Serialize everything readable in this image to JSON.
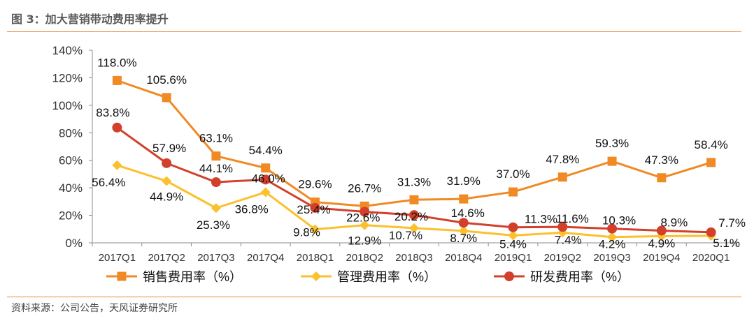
{
  "figure": {
    "title": "图 3：加大营销带动费用率提升",
    "source": "资料来源：公司公告，天风证券研究所"
  },
  "chart_data": {
    "type": "line",
    "title": "",
    "xlabel": "",
    "ylabel": "",
    "categories": [
      "2017Q1",
      "2017Q2",
      "2017Q3",
      "2017Q4",
      "2018Q1",
      "2018Q2",
      "2018Q3",
      "2018Q4",
      "2019Q1",
      "2019Q2",
      "2019Q3",
      "2019Q4",
      "2020Q1"
    ],
    "ylim": [
      0,
      140
    ],
    "yticks": [
      0,
      20,
      40,
      60,
      80,
      100,
      120,
      140
    ],
    "ytick_labels": [
      "0%",
      "20%",
      "40%",
      "60%",
      "80%",
      "100%",
      "120%",
      "140%"
    ],
    "grid": false,
    "legend_position": "bottom",
    "series": [
      {
        "name": "销售费用率（%）",
        "marker": "square",
        "color": "#f08a24",
        "values": [
          118.0,
          105.6,
          63.1,
          54.4,
          29.6,
          26.7,
          31.3,
          31.9,
          37.0,
          47.8,
          59.3,
          47.3,
          58.4
        ],
        "labels": [
          "118.0%",
          "105.6%",
          "63.1%",
          "54.4%",
          "29.6%",
          "26.7%",
          "31.3%",
          "31.9%",
          "37.0%",
          "47.8%",
          "59.3%",
          "47.3%",
          "58.4%"
        ]
      },
      {
        "name": "管理费用率（%）",
        "marker": "diamond",
        "color": "#fbc02d",
        "values": [
          56.4,
          44.9,
          25.3,
          36.8,
          9.8,
          12.9,
          10.7,
          8.7,
          5.4,
          7.4,
          4.2,
          4.9,
          5.1
        ],
        "labels": [
          "56.4%",
          "44.9%",
          "25.3%",
          "36.8%",
          "9.8%",
          "12.9%",
          "10.7%",
          "8.7%",
          "5.4%",
          "7.4%",
          "4.2%",
          "4.9%",
          "5.1%"
        ]
      },
      {
        "name": "研发费用率（%）",
        "marker": "circle",
        "color": "#d2402b",
        "values": [
          83.8,
          57.9,
          44.1,
          46.0,
          25.4,
          22.6,
          20.2,
          14.6,
          11.3,
          11.6,
          10.3,
          8.9,
          7.7
        ],
        "labels": [
          "83.8%",
          "57.9%",
          "44.1%",
          "46.0%",
          "25.4%",
          "22.6%",
          "20.2%",
          "14.6%",
          "11.3%",
          "11.6%",
          "10.3%",
          "8.9%",
          "7.7%"
        ]
      }
    ]
  }
}
